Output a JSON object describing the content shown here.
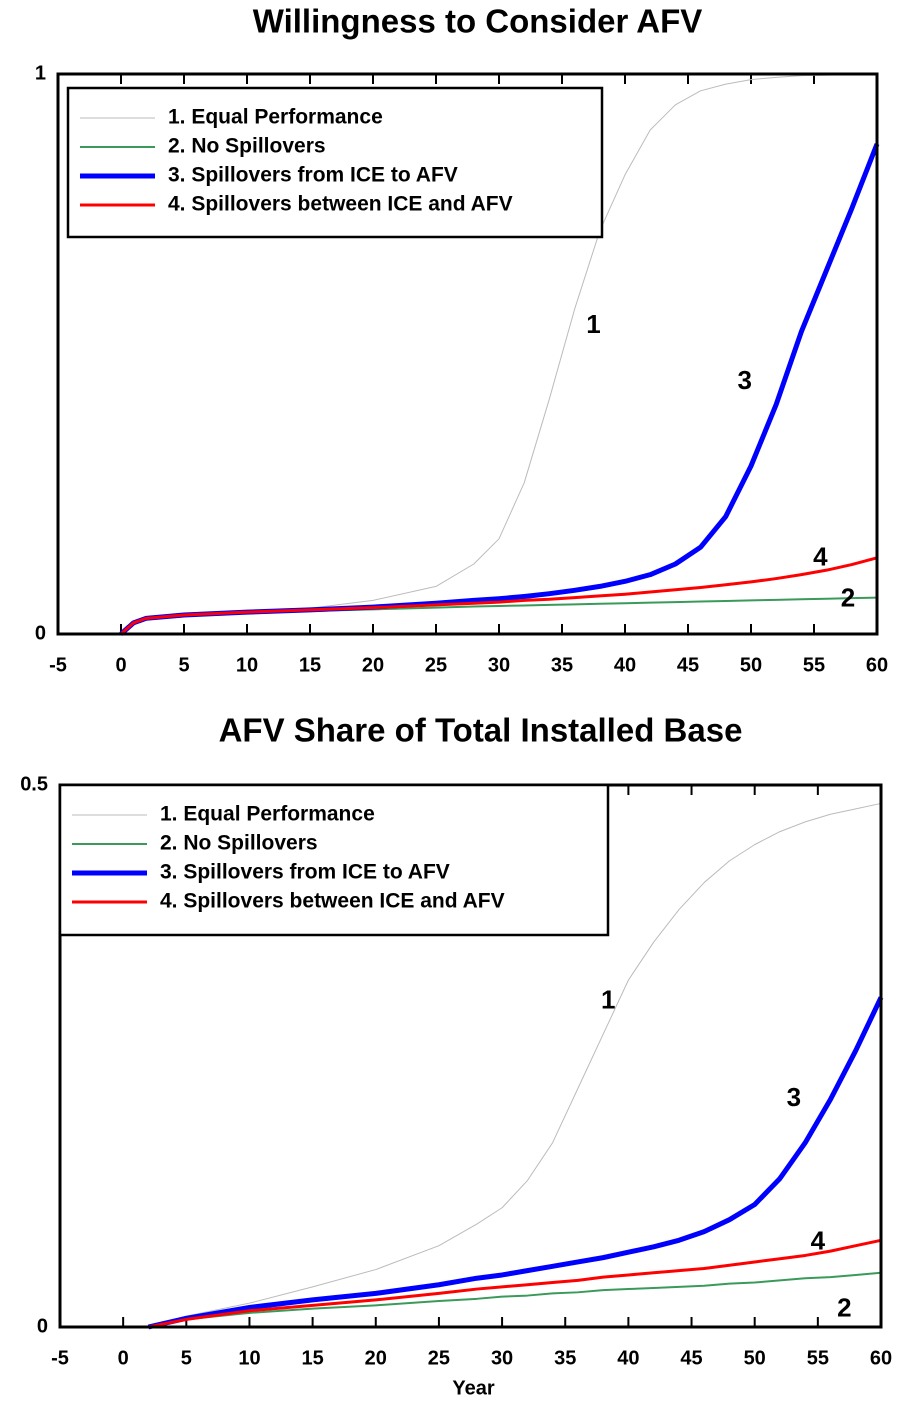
{
  "chart_data": [
    {
      "type": "line",
      "title": "Willingness to Consider AFV",
      "x": [
        0,
        1,
        2,
        5,
        10,
        15,
        20,
        25,
        28,
        30,
        32,
        34,
        36,
        38,
        40,
        42,
        44,
        46,
        48,
        50,
        52,
        54,
        56,
        58,
        60
      ],
      "xlim": [
        -5,
        60
      ],
      "xticks": [
        -5,
        0,
        5,
        10,
        15,
        20,
        25,
        30,
        35,
        40,
        45,
        50,
        55,
        60
      ],
      "ylim": [
        0,
        1
      ],
      "yticks": [
        0,
        1
      ],
      "legend": "upper left",
      "series": [
        {
          "name": "1. Equal Performance",
          "color": "#bbbbbb",
          "values": [
            0,
            0.02,
            0.028,
            0.034,
            0.04,
            0.046,
            0.06,
            0.085,
            0.125,
            0.17,
            0.27,
            0.42,
            0.58,
            0.72,
            0.82,
            0.9,
            0.945,
            0.97,
            0.982,
            0.99,
            0.994,
            0.997,
            0.998,
            0.999,
            1.0
          ]
        },
        {
          "name": "2. No Spillovers",
          "color": "#3a9a5a",
          "values": [
            0,
            0.02,
            0.028,
            0.034,
            0.038,
            0.041,
            0.044,
            0.047,
            0.049,
            0.05,
            0.051,
            0.052,
            0.053,
            0.054,
            0.055,
            0.056,
            0.057,
            0.058,
            0.059,
            0.06,
            0.061,
            0.062,
            0.063,
            0.064,
            0.065
          ]
        },
        {
          "name": "3. Spillovers from ICE to AFV",
          "color": "#0000ff",
          "values": [
            0,
            0.02,
            0.028,
            0.034,
            0.039,
            0.043,
            0.048,
            0.055,
            0.06,
            0.063,
            0.067,
            0.072,
            0.078,
            0.085,
            0.094,
            0.106,
            0.125,
            0.155,
            0.21,
            0.3,
            0.41,
            0.54,
            0.65,
            0.76,
            0.875
          ]
        },
        {
          "name": "4. Spillovers between ICE and AFV",
          "color": "#ff0000",
          "values": [
            0,
            0.02,
            0.028,
            0.034,
            0.039,
            0.043,
            0.047,
            0.052,
            0.055,
            0.057,
            0.06,
            0.062,
            0.065,
            0.068,
            0.071,
            0.075,
            0.079,
            0.083,
            0.088,
            0.093,
            0.099,
            0.106,
            0.114,
            0.124,
            0.136
          ]
        }
      ],
      "annotations": [
        {
          "text": "1",
          "x": 37.5,
          "y": 0.55
        },
        {
          "text": "3",
          "x": 49.5,
          "y": 0.45
        },
        {
          "text": "4",
          "x": 55.5,
          "y": 0.135
        },
        {
          "text": "2",
          "x": 57.7,
          "y": 0.061
        }
      ]
    },
    {
      "type": "line",
      "title": "AFV Share of Total Installed Base",
      "xlabel": "Year",
      "x": [
        2,
        5,
        10,
        15,
        20,
        25,
        28,
        30,
        32,
        34,
        36,
        38,
        40,
        42,
        44,
        46,
        48,
        50,
        52,
        54,
        56,
        58,
        60
      ],
      "xlim": [
        -5,
        60
      ],
      "xticks": [
        -5,
        0,
        5,
        10,
        15,
        20,
        25,
        30,
        35,
        40,
        45,
        50,
        55,
        60
      ],
      "ylim": [
        0,
        0.5
      ],
      "yticks": [
        0,
        0.5
      ],
      "legend": "upper left",
      "series": [
        {
          "name": "1. Equal Performance",
          "color": "#bbbbbb",
          "values": [
            0,
            0.01,
            0.022,
            0.037,
            0.053,
            0.075,
            0.095,
            0.11,
            0.135,
            0.17,
            0.22,
            0.27,
            0.32,
            0.355,
            0.385,
            0.41,
            0.43,
            0.445,
            0.457,
            0.466,
            0.473,
            0.478,
            0.483
          ]
        },
        {
          "name": "2. No Spillovers",
          "color": "#3a9a5a",
          "values": [
            0,
            0.007,
            0.013,
            0.017,
            0.02,
            0.024,
            0.026,
            0.028,
            0.029,
            0.031,
            0.032,
            0.034,
            0.035,
            0.036,
            0.037,
            0.038,
            0.04,
            0.041,
            0.043,
            0.045,
            0.046,
            0.048,
            0.05
          ]
        },
        {
          "name": "3. Spillovers from ICE to AFV",
          "color": "#0000ff",
          "values": [
            0,
            0.008,
            0.018,
            0.025,
            0.031,
            0.039,
            0.045,
            0.048,
            0.052,
            0.056,
            0.06,
            0.064,
            0.069,
            0.074,
            0.08,
            0.088,
            0.099,
            0.113,
            0.137,
            0.17,
            0.21,
            0.255,
            0.304
          ]
        },
        {
          "name": "4. Spillovers between ICE and AFV",
          "color": "#ff0000",
          "values": [
            0,
            0.007,
            0.015,
            0.02,
            0.025,
            0.031,
            0.035,
            0.037,
            0.039,
            0.041,
            0.043,
            0.046,
            0.048,
            0.05,
            0.052,
            0.054,
            0.057,
            0.06,
            0.063,
            0.066,
            0.07,
            0.075,
            0.08
          ]
        }
      ],
      "annotations": [
        {
          "text": "1",
          "x": 38.4,
          "y": 0.3
        },
        {
          "text": "3",
          "x": 53.1,
          "y": 0.21
        },
        {
          "text": "4",
          "x": 55,
          "y": 0.078
        },
        {
          "text": "2",
          "x": 57.1,
          "y": 0.016
        }
      ]
    }
  ]
}
